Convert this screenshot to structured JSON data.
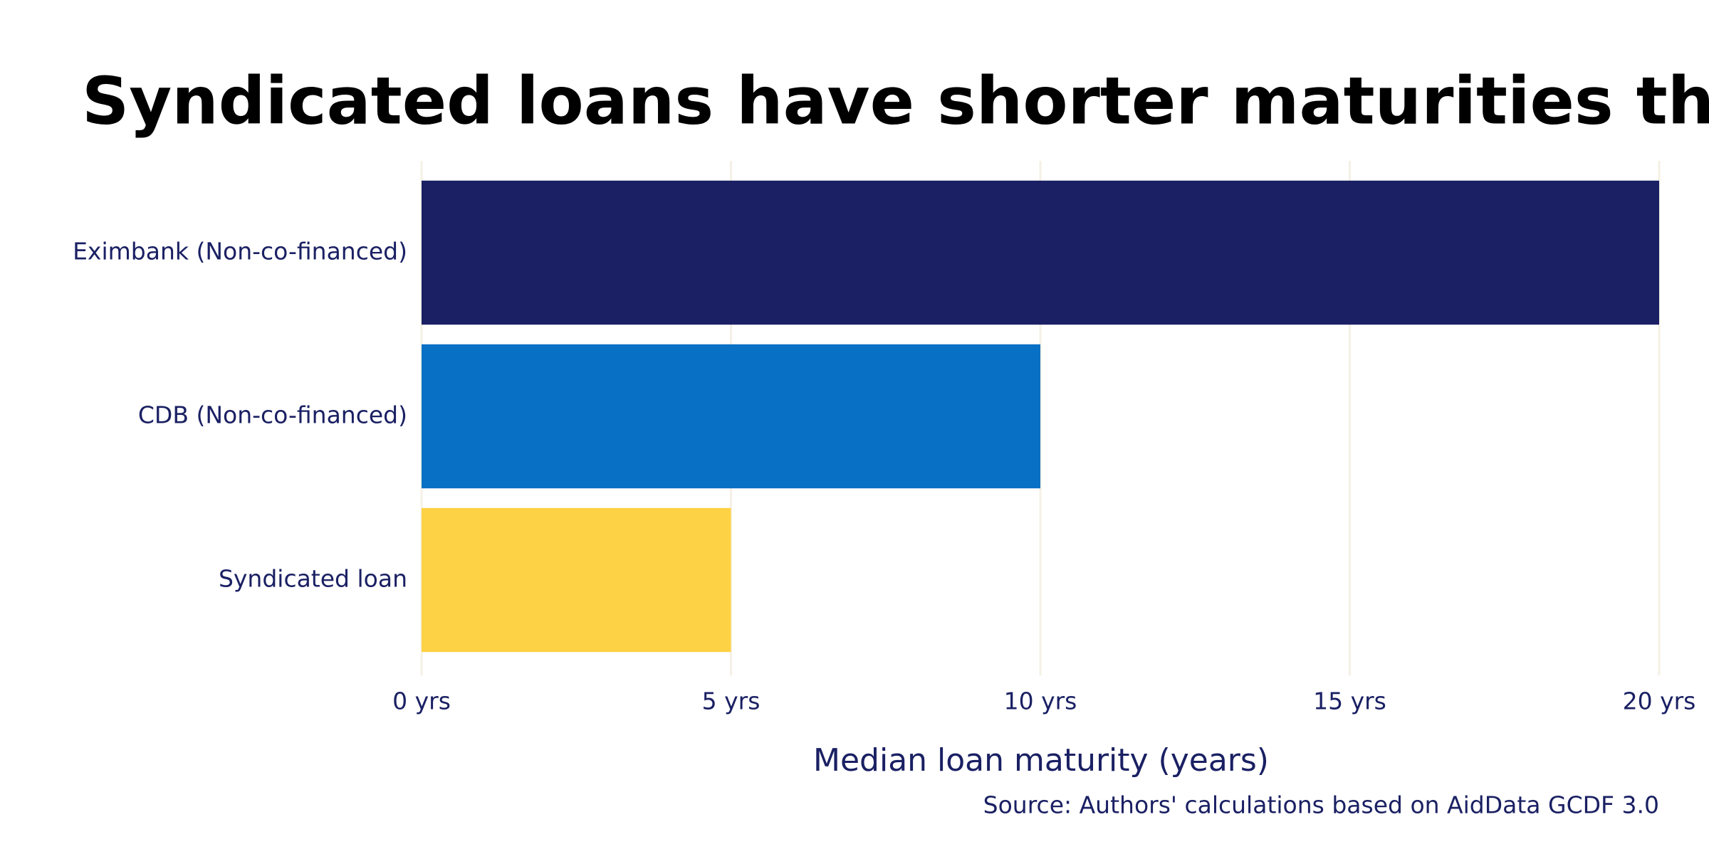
{
  "chart_data": {
    "type": "hbar",
    "title": "Syndicated loans have shorter maturities than bilate",
    "categories": [
      "Eximbank (Non-co-financed)",
      "CDB (Non-co-financed)",
      "Syndicated loan"
    ],
    "values": [
      20,
      10,
      5
    ],
    "colors": [
      "#1a2063",
      "#0870c5",
      "#fdd244"
    ],
    "xlim": [
      0,
      20
    ],
    "xticks": [
      {
        "value": 0,
        "label": "0 yrs"
      },
      {
        "value": 5,
        "label": "5 yrs"
      },
      {
        "value": 10,
        "label": "10 yrs"
      },
      {
        "value": 15,
        "label": "15 yrs"
      },
      {
        "value": 20,
        "label": "20 yrs"
      }
    ],
    "xlabel": "Median loan maturity (years)",
    "source": "Source: Authors' calculations based on AidData GCDF 3.0",
    "grid": true
  }
}
